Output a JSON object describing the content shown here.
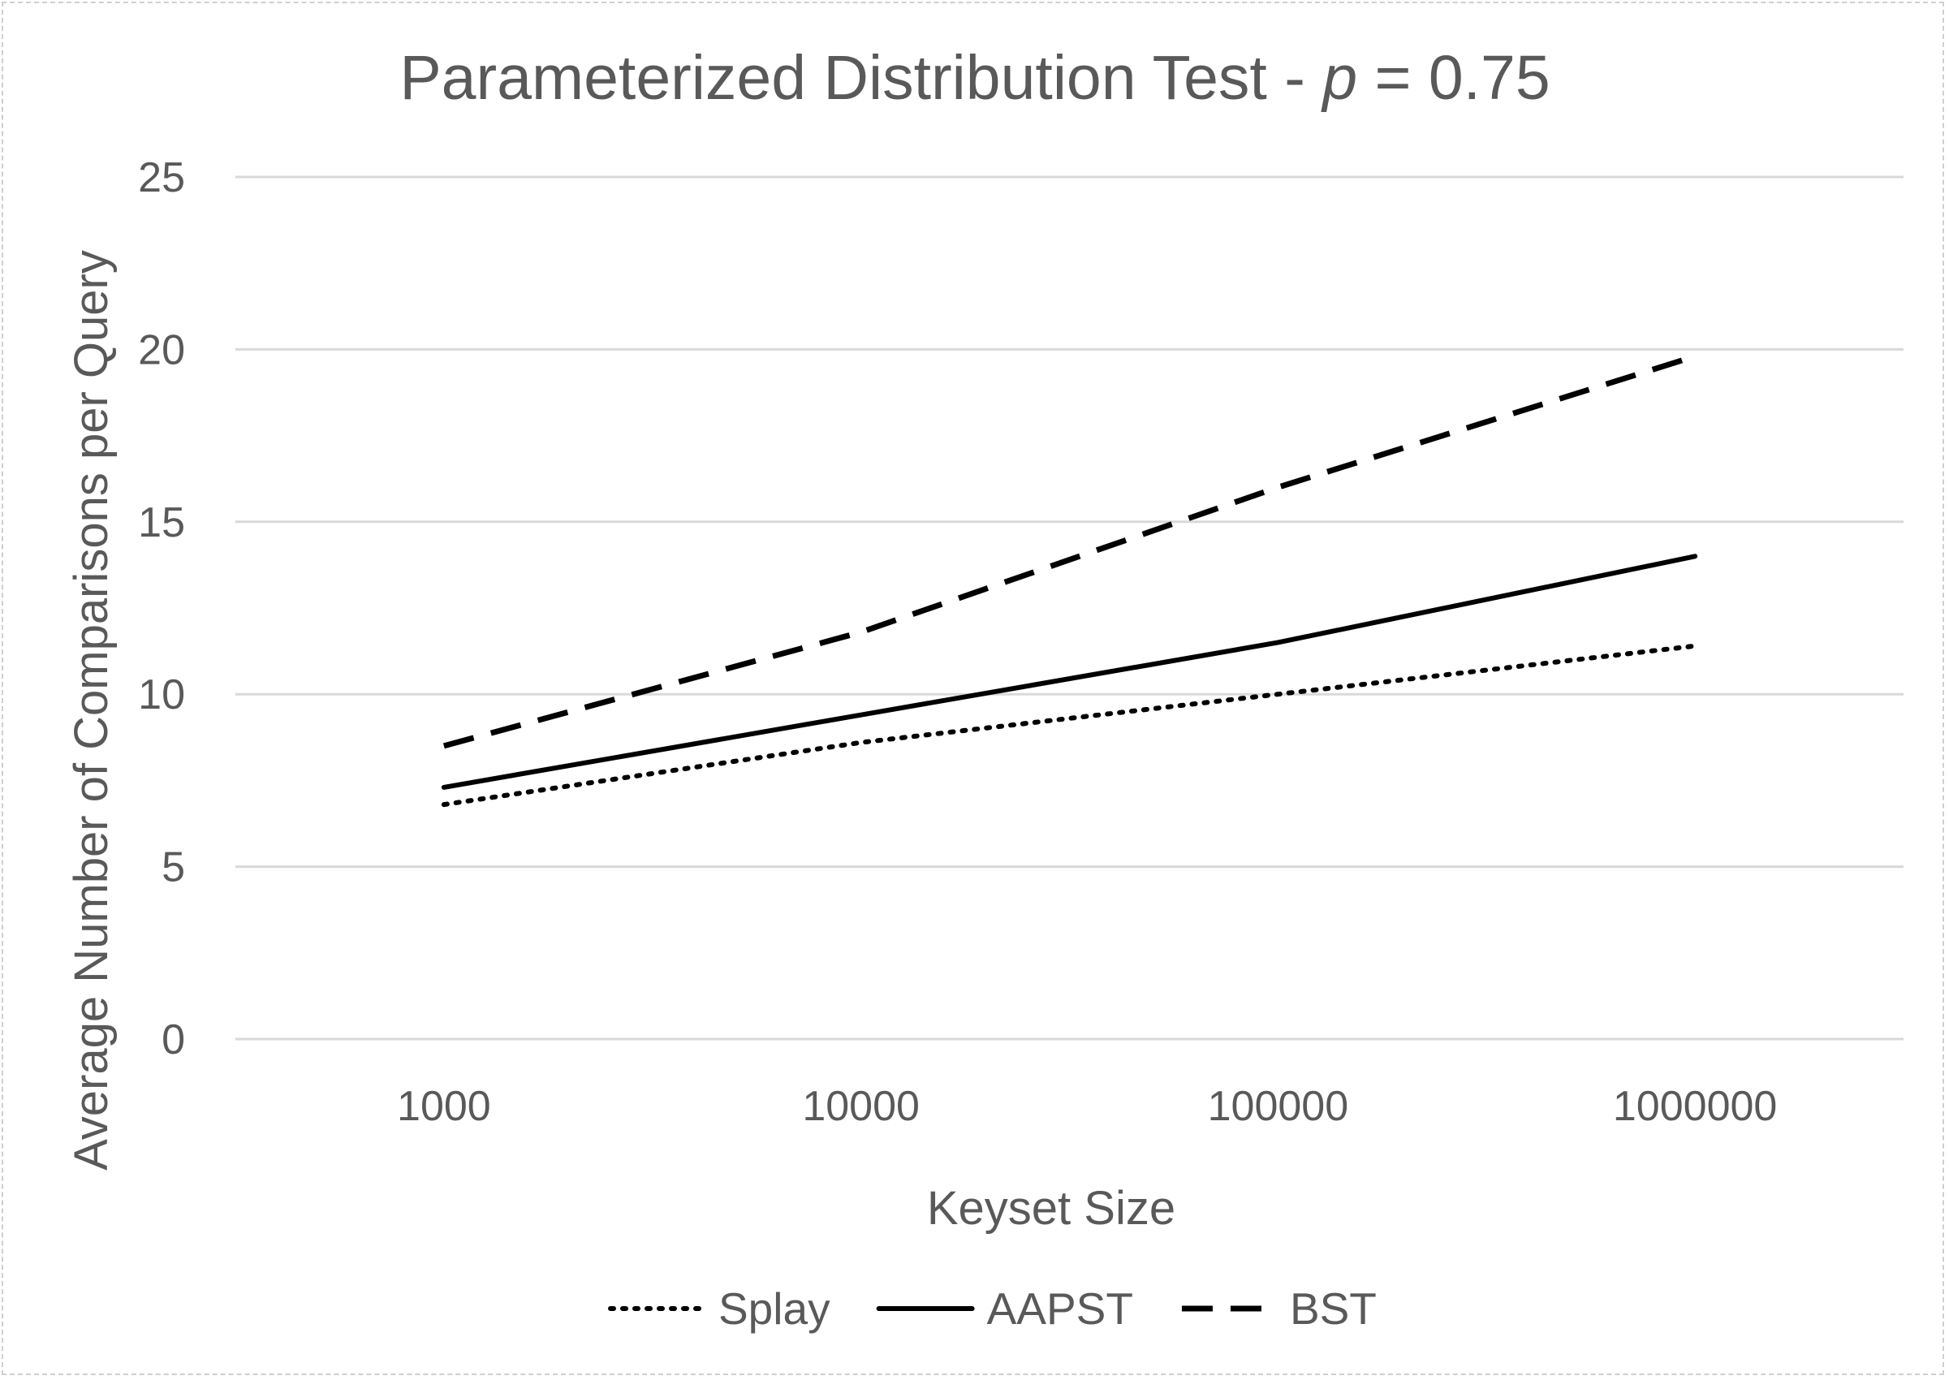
{
  "chart_data": {
    "type": "line",
    "title": "Parameterized Distribution Test - p = 0.75",
    "title_parts": {
      "prefix": "Parameterized Distribution Test - ",
      "variable": "p",
      "suffix": " = 0.75"
    },
    "xlabel": "Keyset Size",
    "ylabel": "Average Number of Comparisons per Query",
    "categories": [
      "1000",
      "10000",
      "100000",
      "1000000"
    ],
    "ylim": [
      0,
      25
    ],
    "yticks": [
      "0",
      "5",
      "10",
      "15",
      "20",
      "25"
    ],
    "grid": true,
    "legend_position": "bottom",
    "series": [
      {
        "name": "Splay",
        "style": "dotted",
        "color": "#000000",
        "values": [
          6.8,
          8.6,
          10.0,
          11.4
        ]
      },
      {
        "name": "AAPST",
        "style": "solid",
        "color": "#000000",
        "values": [
          7.3,
          9.4,
          11.5,
          14.0
        ]
      },
      {
        "name": "BST",
        "style": "dashed",
        "color": "#000000",
        "values": [
          8.5,
          11.8,
          16.0,
          19.8
        ]
      }
    ]
  }
}
